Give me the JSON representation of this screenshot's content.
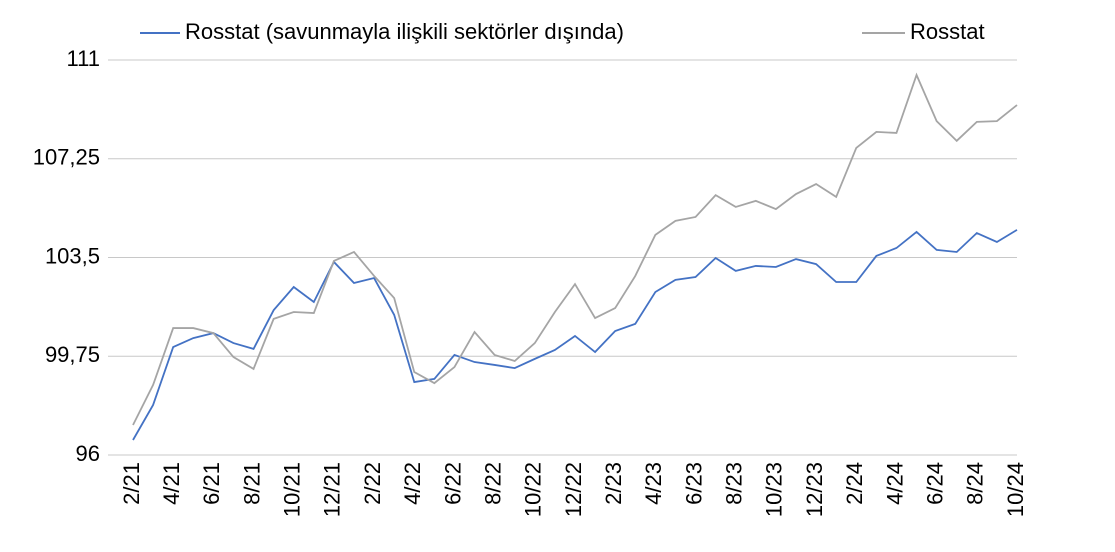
{
  "chart_data": {
    "type": "line",
    "categories": [
      "2/21",
      null,
      "4/21",
      null,
      "6/21",
      null,
      "8/21",
      null,
      "10/21",
      null,
      "12/21",
      null,
      "2/22",
      null,
      "4/22",
      null,
      "6/22",
      null,
      "8/22",
      null,
      "10/22",
      null,
      "12/22",
      null,
      "2/23",
      null,
      "4/23",
      null,
      "6/23",
      null,
      "8/23",
      null,
      "10/23",
      null,
      "12/23",
      null,
      "2/24",
      null,
      "4/24",
      null,
      "6/24",
      null,
      "8/24",
      null,
      "10/24"
    ],
    "series": [
      {
        "name": "Rosstat (savunmayla ilişkili sektörler dışında)",
        "color": "#4472c4",
        "values": [
          96.57,
          97.9,
          100.1,
          100.44,
          100.63,
          100.25,
          100.03,
          101.5,
          102.38,
          101.81,
          103.33,
          102.53,
          102.72,
          101.32,
          98.77,
          98.89,
          99.8,
          99.53,
          99.42,
          99.3,
          99.65,
          99.99,
          100.52,
          99.91,
          100.71,
          100.98,
          102.19,
          102.65,
          102.76,
          103.48,
          102.99,
          103.18,
          103.14,
          103.44,
          103.25,
          102.57,
          102.57,
          103.56,
          103.86,
          104.47,
          103.79,
          103.71,
          104.43,
          104.09,
          104.55
        ]
      },
      {
        "name": "Rosstat",
        "color": "#a5a5a5",
        "values": [
          97.14,
          98.66,
          100.82,
          100.82,
          100.63,
          99.72,
          99.27,
          101.17,
          101.43,
          101.39,
          103.37,
          103.71,
          102.8,
          101.96,
          99.15,
          98.73,
          99.34,
          100.67,
          99.8,
          99.57,
          100.25,
          101.43,
          102.49,
          101.2,
          101.58,
          102.8,
          104.36,
          104.89,
          105.04,
          105.87,
          105.42,
          105.65,
          105.34,
          105.91,
          106.29,
          105.8,
          107.66,
          108.27,
          108.23,
          110.43,
          108.68,
          107.93,
          108.65,
          108.68,
          109.29
        ]
      }
    ],
    "ylim": [
      96,
      111
    ],
    "yticks": [
      96,
      {
        "value": 99.75,
        "label": "99,75"
      },
      {
        "value": 103.5,
        "label": "103,5"
      },
      {
        "value": 107.25,
        "label": "107,25"
      },
      111
    ],
    "grid": true,
    "legend": "top"
  }
}
